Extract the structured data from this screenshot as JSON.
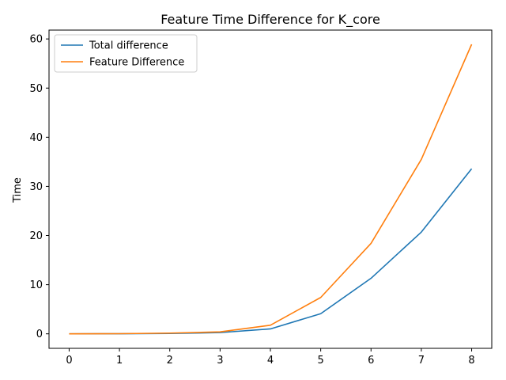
{
  "chart_data": {
    "type": "line",
    "title": "Feature Time Difference for K_core",
    "xlabel": "",
    "ylabel": "Time",
    "x": [
      0,
      1,
      2,
      3,
      4,
      5,
      6,
      7,
      8
    ],
    "xlim": [
      -0.4,
      8.4
    ],
    "ylim": [
      -2.95,
      61.8
    ],
    "xticks": [
      "0",
      "1",
      "2",
      "3",
      "4",
      "5",
      "6",
      "7",
      "8"
    ],
    "yticks": [
      "0",
      "10",
      "20",
      "30",
      "40",
      "50",
      "60"
    ],
    "grid": false,
    "legend_position": "upper-left",
    "series": [
      {
        "name": "Total difference",
        "color": "#1f77b4",
        "values": [
          0.0,
          0.02,
          0.08,
          0.25,
          1.0,
          4.1,
          11.3,
          20.7,
          33.6
        ]
      },
      {
        "name": "Feature Difference",
        "color": "#ff7f0e",
        "values": [
          0.0,
          0.03,
          0.15,
          0.4,
          1.75,
          7.4,
          18.4,
          35.5,
          58.9
        ]
      }
    ]
  }
}
